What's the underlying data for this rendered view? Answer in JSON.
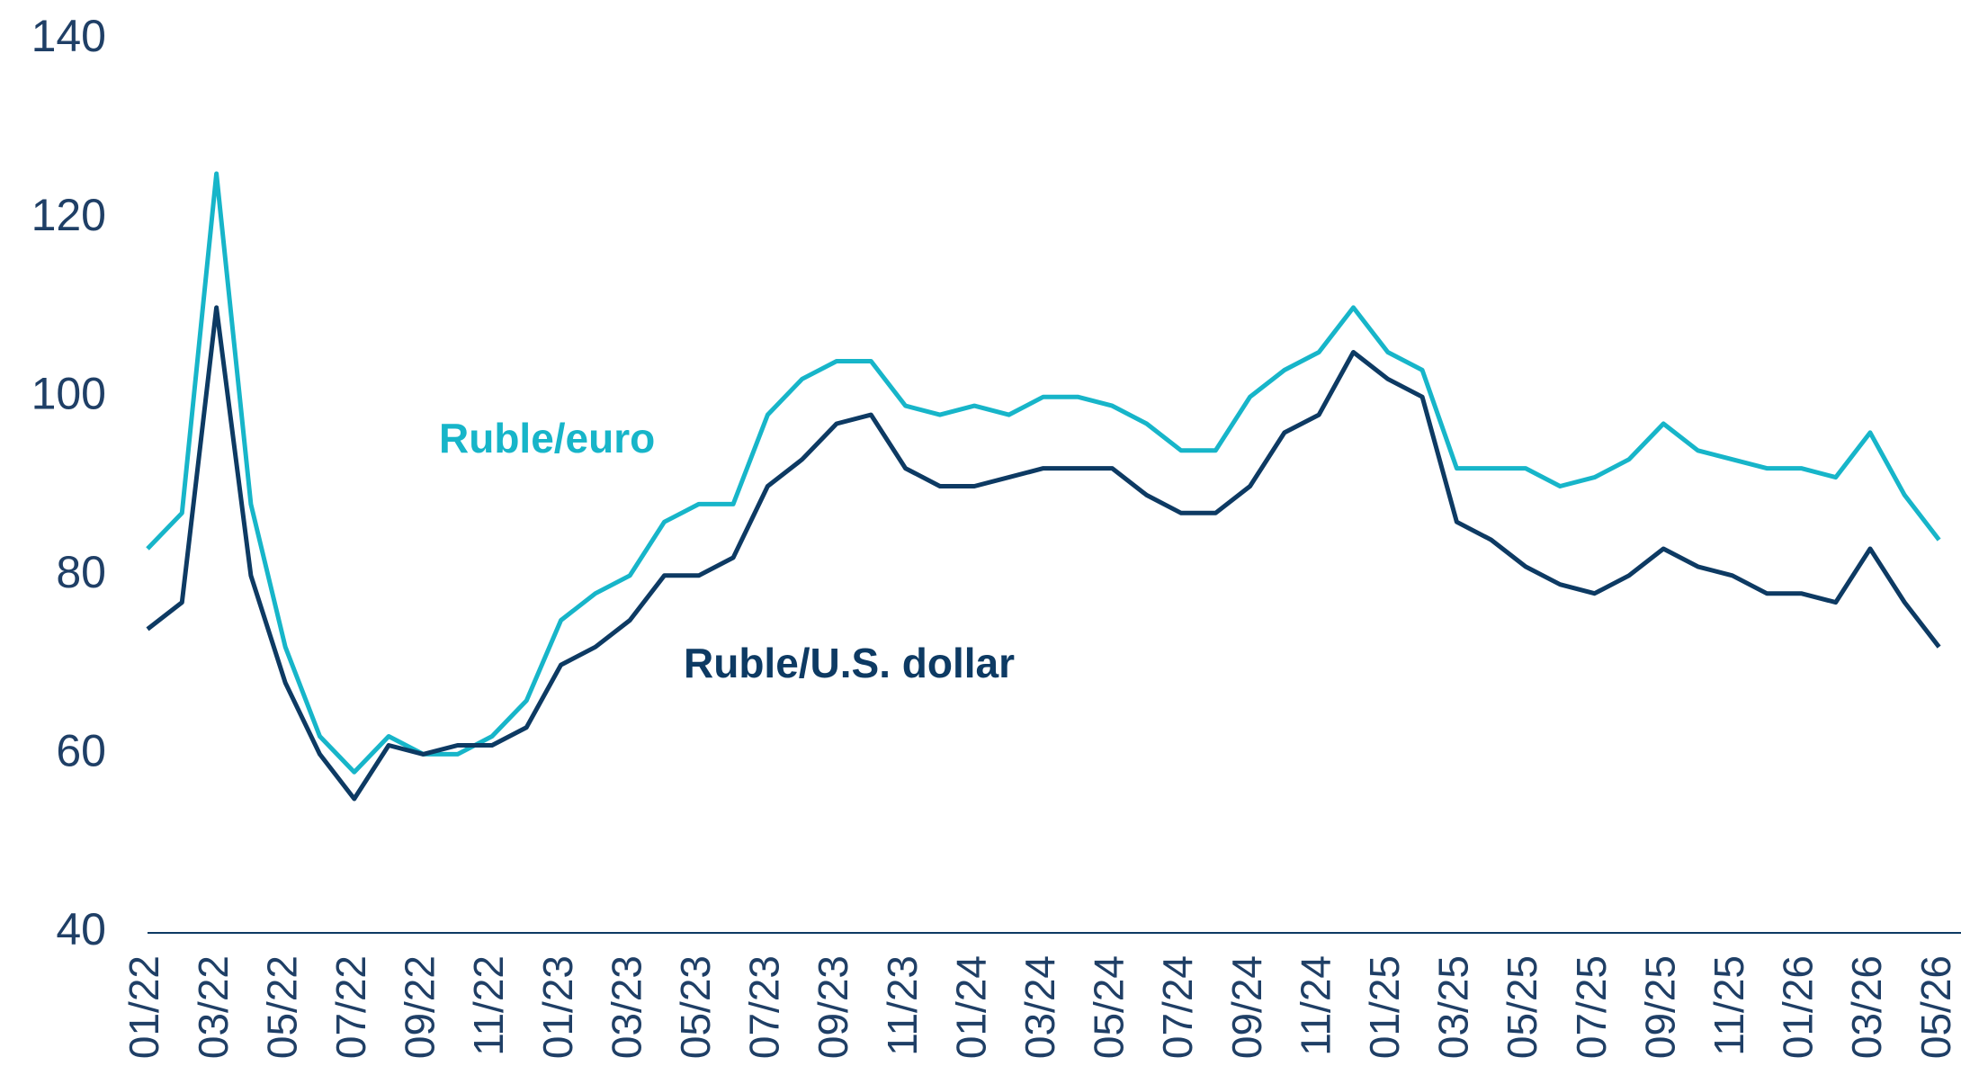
{
  "chart_data": {
    "type": "line",
    "categories": [
      "01/22",
      null,
      "03/22",
      null,
      "05/22",
      null,
      "07/22",
      null,
      "09/22",
      null,
      "11/22",
      null,
      "01/23",
      null,
      "03/23",
      null,
      "05/23",
      null,
      "07/23",
      null,
      "09/23",
      null,
      "11/23",
      null,
      "01/24",
      null,
      "03/24",
      null,
      "05/24",
      null,
      "07/24",
      null,
      "09/24",
      null,
      "11/24",
      null,
      "01/25",
      null,
      "03/25",
      null,
      "05/25",
      null,
      "07/25",
      null,
      "09/25",
      null,
      "11/25",
      null,
      "01/26",
      null,
      "03/26",
      null,
      "05/26"
    ],
    "series": [
      {
        "name": "Ruble/euro",
        "color": "#17b5c9",
        "values": [
          83,
          87,
          125,
          88,
          72,
          62,
          58,
          62,
          60,
          60,
          62,
          66,
          75,
          78,
          80,
          86,
          88,
          88,
          98,
          102,
          104,
          104,
          99,
          98,
          99,
          98,
          100,
          100,
          99,
          97,
          94,
          94,
          100,
          103,
          105,
          110,
          105,
          103,
          92,
          92,
          92,
          90,
          91,
          93,
          97,
          94,
          93,
          92,
          92,
          91,
          96,
          89,
          84
        ]
      },
      {
        "name": "Ruble/U.S. dollar",
        "color": "#0d3a63",
        "values": [
          74,
          77,
          110,
          80,
          68,
          60,
          55,
          61,
          60,
          61,
          61,
          63,
          70,
          72,
          75,
          80,
          80,
          82,
          90,
          93,
          97,
          98,
          92,
          90,
          90,
          91,
          92,
          92,
          92,
          89,
          87,
          87,
          90,
          96,
          98,
          105,
          102,
          100,
          86,
          84,
          81,
          79,
          78,
          80,
          83,
          81,
          80,
          78,
          78,
          77,
          83,
          77,
          72
        ]
      }
    ],
    "ylim": [
      40,
      140
    ],
    "yticks": [
      40,
      60,
      80,
      100,
      120,
      140
    ],
    "grid": false
  }
}
